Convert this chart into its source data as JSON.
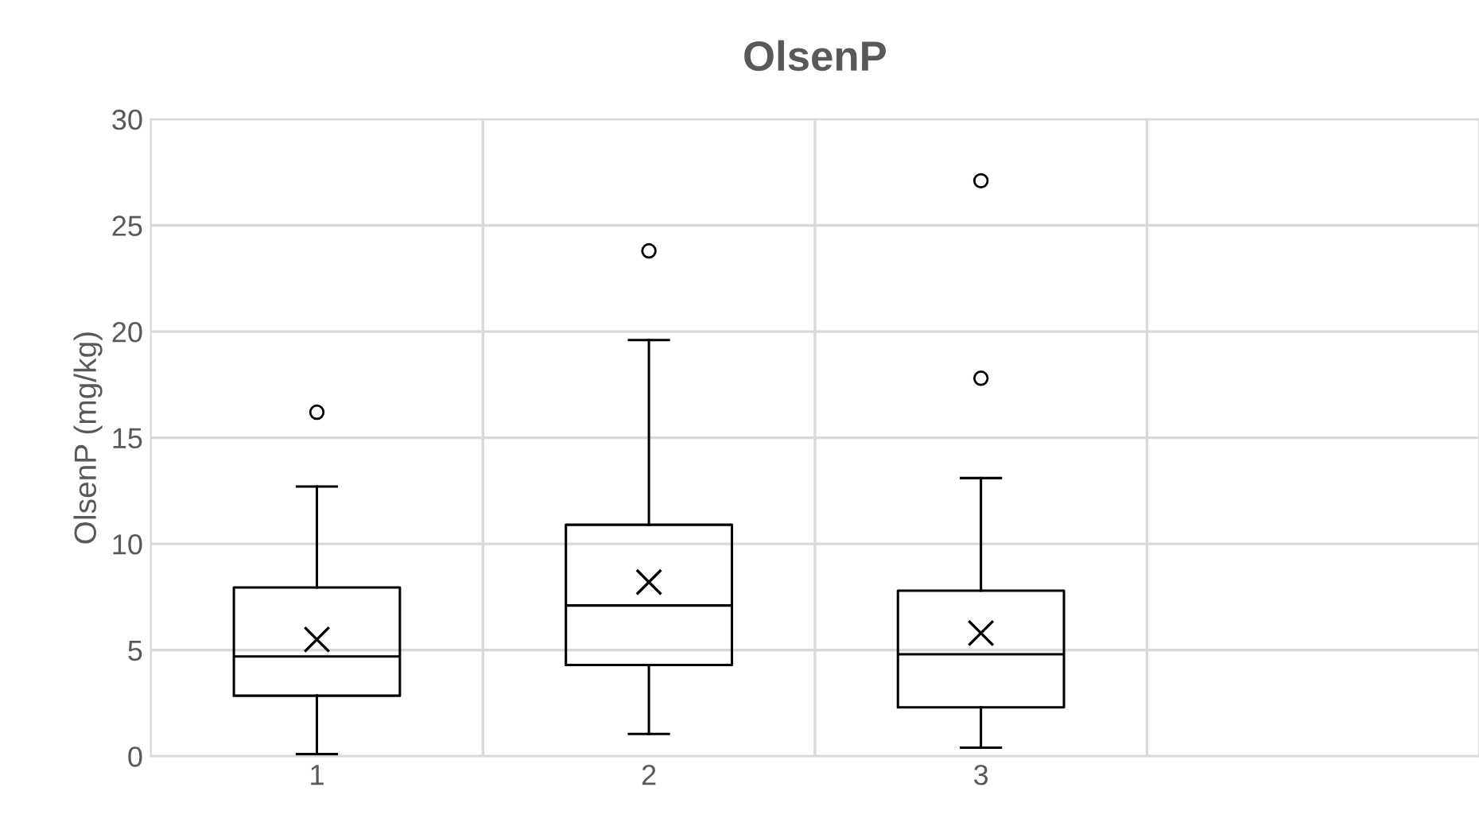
{
  "chart_data": {
    "type": "box",
    "title": "OlsenP",
    "ylabel": "OlsenP (mg/kg)",
    "categories": [
      "1",
      "2",
      "3",
      null
    ],
    "boxes": [
      {
        "low": 0.1,
        "q1": 2.85,
        "median": 4.7,
        "q3": 7.95,
        "high": 12.7,
        "mean": 5.5,
        "outliers": [
          16.2
        ]
      },
      {
        "low": 1.05,
        "q1": 4.3,
        "median": 7.1,
        "q3": 10.9,
        "high": 19.6,
        "mean": 8.2,
        "outliers": [
          23.8
        ]
      },
      {
        "low": 0.4,
        "q1": 2.3,
        "median": 4.8,
        "q3": 7.8,
        "high": 13.1,
        "mean": 5.8,
        "outliers": [
          17.8,
          27.1
        ]
      },
      null
    ],
    "color": "#000000",
    "ylim": [
      0,
      30
    ],
    "yticks": [
      0,
      5,
      10,
      15,
      20,
      25,
      30
    ],
    "grid": true
  }
}
